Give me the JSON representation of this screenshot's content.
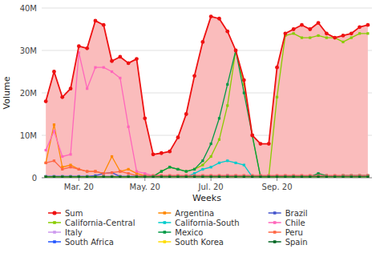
{
  "chart_data": {
    "type": "line",
    "title": "",
    "x_label": "Weeks",
    "y_label": "Volume",
    "categories": [
      null,
      null,
      null,
      null,
      "Mar. 20",
      null,
      null,
      null,
      null,
      null,
      null,
      null,
      "May. 20",
      null,
      null,
      null,
      null,
      null,
      null,
      null,
      "Jul. 20",
      null,
      null,
      null,
      null,
      null,
      null,
      null,
      "Sep. 20",
      null,
      null,
      null,
      null,
      null,
      null,
      null,
      null,
      null,
      null,
      null
    ],
    "ylim": [
      0,
      40000000
    ],
    "yticks": [
      0,
      {
        "value": 10000000,
        "label": "10M"
      },
      {
        "value": 20000000,
        "label": "20M"
      },
      {
        "value": 30000000,
        "label": "30M"
      },
      {
        "value": 40000000,
        "label": "40M"
      }
    ],
    "grid": true,
    "legend": "bottom",
    "series": [
      {
        "name": "Sum",
        "type": "area",
        "color": "#ee1111",
        "marker": "circle",
        "values": [
          18000000,
          25000000,
          19000000,
          21000000,
          31000000,
          30500000,
          37000000,
          36000000,
          27500000,
          28500000,
          27000000,
          28000000,
          14000000,
          5500000,
          5800000,
          6200000,
          9500000,
          15000000,
          24000000,
          32000000,
          38000000,
          37500000,
          34500000,
          30000000,
          23000000,
          10000000,
          8000000,
          8000000,
          26000000,
          34000000,
          35000000,
          36000000,
          35000000,
          36500000,
          34000000,
          33000000,
          33500000,
          34000000,
          35500000,
          36000000
        ]
      },
      {
        "name": "Argentina",
        "color": "#ff8800",
        "marker": "square",
        "values": [
          3500000,
          12500000,
          2500000,
          3000000,
          2000000,
          1500000,
          1500000,
          1000000,
          5000000,
          1500000,
          2000000,
          1000000,
          500000,
          500000,
          500000,
          500000,
          500000,
          500000,
          500000,
          500000,
          500000,
          500000,
          500000,
          500000,
          500000,
          500000,
          500000,
          500000,
          500000,
          500000,
          500000,
          500000,
          500000,
          500000,
          500000,
          500000,
          500000,
          500000,
          500000,
          500000
        ]
      },
      {
        "name": "Brazil",
        "color": "#4455cc",
        "marker": "square",
        "values": [
          300000,
          300000,
          300000,
          300000,
          300000,
          300000,
          500000,
          1000000,
          1200000,
          300000,
          300000,
          300000,
          300000,
          300000,
          300000,
          300000,
          300000,
          300000,
          300000,
          300000,
          300000,
          300000,
          500000,
          300000,
          300000,
          300000,
          300000,
          300000,
          300000,
          300000,
          300000,
          300000,
          300000,
          300000,
          300000,
          300000,
          300000,
          300000,
          300000,
          300000
        ]
      },
      {
        "name": "California-Central",
        "color": "#88cc00",
        "marker": "square",
        "values": [
          200000,
          200000,
          200000,
          200000,
          200000,
          200000,
          200000,
          200000,
          200000,
          200000,
          200000,
          200000,
          200000,
          300000,
          1500000,
          2500000,
          2000000,
          1500000,
          2000000,
          3000000,
          5000000,
          9000000,
          17000000,
          30000000,
          22000000,
          10000000,
          200000,
          200000,
          19000000,
          33500000,
          34000000,
          33000000,
          33000000,
          33500000,
          33000000,
          33000000,
          32000000,
          33000000,
          34000000,
          34000000
        ]
      },
      {
        "name": "California-South",
        "color": "#00cccc",
        "marker": "square",
        "values": [
          200000,
          200000,
          200000,
          200000,
          200000,
          200000,
          200000,
          200000,
          200000,
          200000,
          200000,
          200000,
          200000,
          200000,
          200000,
          200000,
          200000,
          200000,
          1000000,
          2000000,
          2500000,
          3500000,
          4000000,
          3500000,
          3000000,
          200000,
          200000,
          200000,
          200000,
          200000,
          200000,
          200000,
          200000,
          200000,
          200000,
          200000,
          200000,
          200000,
          200000,
          200000
        ]
      },
      {
        "name": "Chile",
        "color": "#ff66bb",
        "marker": "square",
        "values": [
          6500000,
          11000000,
          5000000,
          5500000,
          29500000,
          21000000,
          26000000,
          26000000,
          25000000,
          23500000,
          12000000,
          1500000,
          1000000,
          500000,
          500000,
          500000,
          500000,
          500000,
          500000,
          500000,
          500000,
          500000,
          500000,
          500000,
          500000,
          500000,
          500000,
          500000,
          500000,
          500000,
          500000,
          500000,
          500000,
          500000,
          500000,
          500000,
          500000,
          500000,
          500000,
          500000
        ]
      },
      {
        "name": "Italy",
        "color": "#cc99ee",
        "marker": "square",
        "values": [
          200000,
          200000,
          200000,
          200000,
          200000,
          200000,
          200000,
          200000,
          200000,
          200000,
          200000,
          200000,
          200000,
          200000,
          200000,
          200000,
          200000,
          200000,
          200000,
          200000,
          200000,
          200000,
          200000,
          200000,
          200000,
          200000,
          200000,
          200000,
          200000,
          200000,
          200000,
          200000,
          200000,
          200000,
          200000,
          200000,
          200000,
          200000,
          200000,
          200000
        ]
      },
      {
        "name": "Mexico",
        "color": "#009944",
        "marker": "square",
        "values": [
          200000,
          200000,
          200000,
          200000,
          200000,
          200000,
          200000,
          200000,
          200000,
          200000,
          200000,
          200000,
          200000,
          300000,
          1500000,
          2500000,
          2000000,
          1500000,
          2000000,
          4000000,
          8000000,
          14000000,
          22000000,
          30000000,
          20000000,
          10000000,
          200000,
          200000,
          200000,
          200000,
          200000,
          200000,
          200000,
          1000000,
          500000,
          300000,
          500000,
          500000,
          500000,
          500000
        ]
      },
      {
        "name": "Peru",
        "color": "#ff6644",
        "marker": "square",
        "values": [
          3500000,
          4000000,
          2000000,
          2500000,
          2000000,
          1500000,
          1500000,
          1000000,
          1200000,
          1500000,
          1000000,
          500000,
          500000,
          500000,
          500000,
          500000,
          500000,
          500000,
          500000,
          500000,
          500000,
          500000,
          500000,
          500000,
          500000,
          500000,
          500000,
          500000,
          500000,
          500000,
          500000,
          500000,
          500000,
          500000,
          500000,
          500000,
          500000,
          500000,
          500000,
          500000
        ]
      },
      {
        "name": "South Africa",
        "color": "#2255ff",
        "marker": "square",
        "values": [
          300000,
          300000,
          300000,
          300000,
          300000,
          300000,
          300000,
          300000,
          300000,
          300000,
          300000,
          300000,
          300000,
          300000,
          300000,
          300000,
          300000,
          300000,
          300000,
          300000,
          300000,
          300000,
          300000,
          300000,
          300000,
          300000,
          300000,
          300000,
          300000,
          300000,
          300000,
          300000,
          300000,
          300000,
          300000,
          300000,
          300000,
          300000,
          300000,
          300000
        ]
      },
      {
        "name": "South Korea",
        "color": "#ffdd00",
        "marker": "square",
        "values": [
          200000,
          200000,
          200000,
          200000,
          200000,
          200000,
          200000,
          200000,
          200000,
          200000,
          200000,
          200000,
          200000,
          200000,
          200000,
          200000,
          200000,
          200000,
          200000,
          200000,
          200000,
          200000,
          200000,
          200000,
          200000,
          200000,
          200000,
          200000,
          200000,
          200000,
          200000,
          200000,
          200000,
          200000,
          200000,
          200000,
          200000,
          200000,
          200000,
          200000
        ]
      },
      {
        "name": "Spain",
        "color": "#006622",
        "marker": "square",
        "values": [
          200000,
          200000,
          200000,
          200000,
          200000,
          200000,
          200000,
          200000,
          200000,
          200000,
          200000,
          200000,
          200000,
          200000,
          200000,
          200000,
          200000,
          200000,
          200000,
          200000,
          200000,
          200000,
          200000,
          200000,
          200000,
          200000,
          200000,
          200000,
          200000,
          200000,
          200000,
          200000,
          200000,
          200000,
          200000,
          200000,
          200000,
          200000,
          200000,
          200000
        ]
      }
    ]
  }
}
